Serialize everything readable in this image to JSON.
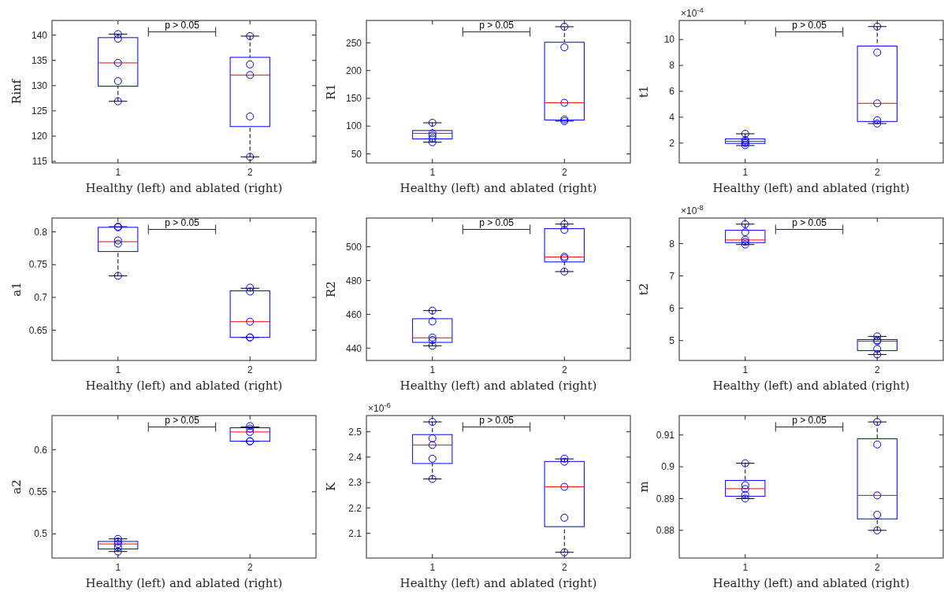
{
  "chart_data": [
    {
      "type": "box",
      "categories": [
        "1",
        "2"
      ],
      "xlabel": "Healthy (left) and ablated (right)",
      "ylabel": "Rinf",
      "ylim": [
        114.7,
        142.9
      ],
      "yticks": [
        115,
        120,
        125,
        130,
        135,
        140
      ],
      "annotations": [
        "p > 0.05"
      ],
      "series": [
        {
          "color": "#0000ff",
          "boxes": [
            {
              "low": 126.9,
              "q1": 129.9,
              "median": 134.5,
              "q3": 139.5,
              "high": 140.2
            },
            {
              "low": 115.9,
              "q1": 121.9,
              "median": 132.1,
              "q3": 135.6,
              "high": 139.8
            }
          ]
        },
        {
          "type": "scatter",
          "color": "#0000ff",
          "marker": "circle",
          "x": [
            "1",
            "1",
            "1",
            "1",
            "1",
            "2",
            "2",
            "2",
            "2",
            "2"
          ],
          "values": [
            140.2,
            139.3,
            134.5,
            130.9,
            126.9,
            139.8,
            134.2,
            132.1,
            123.9,
            115.9
          ]
        }
      ]
    },
    {
      "type": "box",
      "categories": [
        "1",
        "2"
      ],
      "xlabel": "Healthy (left) and ablated (right)",
      "ylabel": "R1",
      "ylim": [
        33.7,
        290.3
      ],
      "yticks": [
        50,
        100,
        150,
        200,
        250
      ],
      "annotations": [
        "p > 0.05"
      ],
      "series": [
        {
          "color": "#0000ff",
          "boxes": [
            {
              "low": 71,
              "q1": 77,
              "median": 87,
              "q3": 92,
              "high": 106
            },
            {
              "low": 109,
              "q1": 111,
              "median": 142,
              "q3": 251,
              "high": 279
            }
          ]
        },
        {
          "type": "scatter",
          "color": "#0000ff",
          "marker": "circle",
          "x": [
            "1",
            "1",
            "1",
            "1",
            "1",
            "2",
            "2",
            "2",
            "2",
            "2"
          ],
          "values": [
            106,
            87,
            83,
            78,
            71,
            279,
            242,
            142,
            112,
            109
          ]
        }
      ]
    },
    {
      "type": "box",
      "categories": [
        "1",
        "2"
      ],
      "xlabel": "Healthy (left) and ablated (right)",
      "ylabel": "t1",
      "ylim": [
        0.47,
        11.47
      ],
      "yticks": [
        2,
        4,
        6,
        8,
        10
      ],
      "annotations": [
        "p > 0.05",
        "×10$^{-4}$"
      ],
      "series": [
        {
          "color": "#0000ff",
          "boxes": [
            {
              "low": 1.81,
              "q1": 1.98,
              "median": 2.14,
              "q3": 2.33,
              "high": 2.72
            },
            {
              "low": 3.51,
              "q1": 3.67,
              "median": 5.07,
              "q3": 9.49,
              "high": 11.0
            }
          ]
        },
        {
          "type": "scatter",
          "color": "#0000ff",
          "marker": "circle",
          "x": [
            "1",
            "1",
            "1",
            "1",
            "1",
            "2",
            "2",
            "2",
            "2",
            "2"
          ],
          "values": [
            2.72,
            2.23,
            2.1,
            2.0,
            1.84,
            11.0,
            9.0,
            5.07,
            3.77,
            3.51
          ]
        }
      ]
    },
    {
      "type": "box",
      "categories": [
        "1",
        "2"
      ],
      "xlabel": "Healthy (left) and ablated (right)",
      "ylabel": "a1",
      "ylim": [
        0.6038,
        0.8212
      ],
      "yticks": [
        0.65,
        0.7,
        0.75,
        0.8
      ],
      "annotations": [
        "p > 0.05"
      ],
      "series": [
        {
          "color": "#0000ff",
          "boxes": [
            {
              "low": 0.733,
              "q1": 0.77,
              "median": 0.785,
              "q3": 0.807,
              "high": 0.808
            },
            {
              "low": 0.639,
              "q1": 0.639,
              "median": 0.663,
              "q3": 0.71,
              "high": 0.714
            }
          ]
        },
        {
          "type": "scatter",
          "color": "#0000ff",
          "marker": "circle",
          "x": [
            "1",
            "1",
            "1",
            "1",
            "1",
            "2",
            "2",
            "2",
            "2",
            "2"
          ],
          "values": [
            0.808,
            0.807,
            0.787,
            0.782,
            0.733,
            0.715,
            0.709,
            0.663,
            0.639,
            0.639
          ]
        }
      ]
    },
    {
      "type": "box",
      "categories": [
        "1",
        "2"
      ],
      "xlabel": "Healthy (left) and ablated (right)",
      "ylabel": "R2",
      "ylim": [
        432.7,
        517.0
      ],
      "yticks": [
        440,
        460,
        480,
        500
      ],
      "annotations": [
        "p > 0.05"
      ],
      "series": [
        {
          "color": "#0000ff",
          "boxes": [
            {
              "low": 441.4,
              "q1": 443.4,
              "median": 446.1,
              "q3": 457.4,
              "high": 462.2
            },
            {
              "low": 485.3,
              "q1": 491.0,
              "median": 493.9,
              "q3": 510.7,
              "high": 513.4
            }
          ]
        },
        {
          "type": "scatter",
          "color": "#0000ff",
          "marker": "circle",
          "x": [
            "1",
            "1",
            "1",
            "1",
            "1",
            "2",
            "2",
            "2",
            "2",
            "2"
          ],
          "values": [
            462.2,
            455.8,
            446.3,
            444.8,
            441.4,
            513.4,
            510.0,
            494.1,
            493.2,
            485.3
          ]
        }
      ]
    },
    {
      "type": "box",
      "categories": [
        "1",
        "2"
      ],
      "xlabel": "Healthy (left) and ablated (right)",
      "ylabel": "t2",
      "ylim": [
        4.385,
        8.79
      ],
      "yticks": [
        5,
        6,
        7,
        8
      ],
      "annotations": [
        "p > 0.05",
        "×10$^{-8}$"
      ],
      "series": [
        {
          "color": "#0000ff",
          "boxes": [
            {
              "low": 7.97,
              "q1": 8.03,
              "median": 8.11,
              "q3": 8.41,
              "high": 8.6
            },
            {
              "low": 4.57,
              "q1": 4.69,
              "median": 4.98,
              "q3": 5.03,
              "high": 5.13
            }
          ]
        },
        {
          "type": "scatter",
          "color": "#0000ff",
          "marker": "circle",
          "x": [
            "1",
            "1",
            "1",
            "1",
            "1",
            "2",
            "2",
            "2",
            "2",
            "2"
          ],
          "values": [
            8.6,
            8.35,
            8.12,
            8.05,
            7.97,
            5.13,
            5.01,
            4.98,
            4.74,
            4.57
          ]
        }
      ]
    },
    {
      "type": "box",
      "categories": [
        "1",
        "2"
      ],
      "xlabel": "Healthy (left) and ablated (right)",
      "ylabel": "a2",
      "ylim": [
        0.4713,
        0.6405
      ],
      "yticks": [
        0.5,
        0.55,
        0.6
      ],
      "annotations": [
        "p > 0.05"
      ],
      "series": [
        {
          "color": "#0000ff",
          "boxes": [
            {
              "low": 0.479,
              "q1": 0.482,
              "median": 0.488,
              "q3": 0.491,
              "high": 0.494
            },
            {
              "low": 0.61,
              "q1": 0.61,
              "median": 0.621,
              "q3": 0.626,
              "high": 0.627
            }
          ]
        },
        {
          "type": "scatter",
          "color": "#0000ff",
          "marker": "circle",
          "x": [
            "1",
            "1",
            "1",
            "1",
            "1",
            "2",
            "2",
            "2",
            "2",
            "2"
          ],
          "values": [
            0.494,
            0.491,
            0.488,
            0.484,
            0.479,
            0.628,
            0.625,
            0.621,
            0.61,
            0.61
          ]
        }
      ]
    },
    {
      "type": "box",
      "categories": [
        "1",
        "2"
      ],
      "xlabel": "Healthy (left) and ablated (right)",
      "ylabel": "K",
      "ylim": [
        2.0024,
        2.564
      ],
      "yticks": [
        2.1,
        2.2,
        2.3,
        2.4,
        2.5
      ],
      "annotations": [
        "p > 0.05",
        "×10$^{-6}$"
      ],
      "series": [
        {
          "color": "#0000ff",
          "boxes": [
            {
              "low": 2.314,
              "q1": 2.375,
              "median": 2.448,
              "q3": 2.489,
              "high": 2.539
            },
            {
              "low": 2.025,
              "q1": 2.126,
              "median": 2.283,
              "q3": 2.383,
              "high": 2.393
            }
          ]
        },
        {
          "type": "scatter",
          "color": "#0000ff",
          "marker": "circle",
          "x": [
            "1",
            "1",
            "1",
            "1",
            "1",
            "2",
            "2",
            "2",
            "2",
            "2"
          ],
          "values": [
            2.539,
            2.474,
            2.448,
            2.394,
            2.314,
            2.394,
            2.382,
            2.283,
            2.161,
            2.025
          ]
        }
      ]
    },
    {
      "type": "box",
      "categories": [
        "1",
        "2"
      ],
      "xlabel": "Healthy (left) and ablated (right)",
      "ylabel": "m",
      "ylim": [
        0.8713,
        0.9161
      ],
      "yticks": [
        0.88,
        0.89,
        0.9,
        0.91
      ],
      "annotations": [
        "p > 0.05"
      ],
      "series": [
        {
          "color": "#0000ff",
          "boxes": [
            {
              "low": 0.89,
              "q1": 0.8907,
              "median": 0.8931,
              "q3": 0.8957,
              "high": 0.9011
            },
            {
              "low": 0.88,
              "q1": 0.8836,
              "median": 0.891,
              "q3": 0.9088,
              "high": 0.9141
            }
          ]
        },
        {
          "type": "scatter",
          "color": "#0000ff",
          "marker": "circle",
          "x": [
            "1",
            "1",
            "1",
            "1",
            "1",
            "2",
            "2",
            "2",
            "2",
            "2"
          ],
          "values": [
            0.9011,
            0.8942,
            0.893,
            0.8912,
            0.89,
            0.9141,
            0.907,
            0.891,
            0.8849,
            0.88
          ]
        }
      ]
    }
  ]
}
